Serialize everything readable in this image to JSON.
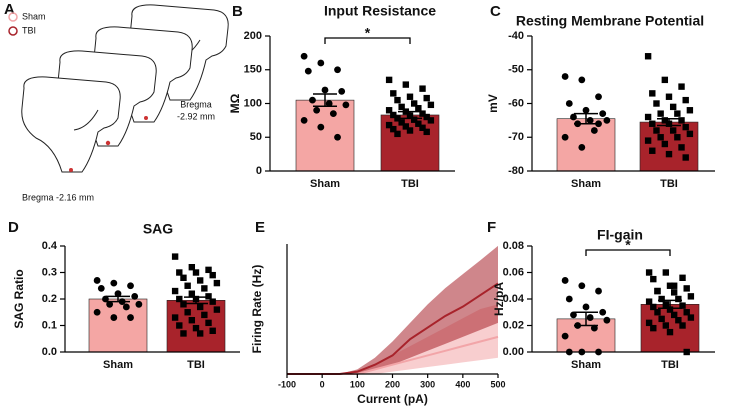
{
  "schematic": {
    "label": "A",
    "legend": [
      "Sham",
      "TBI"
    ],
    "annotations": [
      [
        "Bregma",
        "-2.92 mm"
      ],
      [
        "Bregma -2.16 mm"
      ]
    ]
  },
  "chart_data": [
    {
      "type": "bar",
      "panel": "B",
      "title": "Input Resistance",
      "ylabel": "MΩ",
      "categories": [
        "Sham",
        "TBI"
      ],
      "values": [
        105,
        83
      ],
      "errors": [
        9,
        5
      ],
      "colors": [
        "#f4a6a4",
        "#a8232b"
      ],
      "markers": [
        "circle",
        "square"
      ],
      "points": [
        [
          170,
          160,
          150,
          148,
          120,
          118,
          105,
          100,
          98,
          90,
          85,
          75,
          65,
          50
        ],
        [
          135,
          128,
          122,
          115,
          110,
          108,
          105,
          100,
          98,
          95,
          93,
          90,
          88,
          85,
          83,
          82,
          80,
          78,
          76,
          75,
          72,
          70,
          68,
          66,
          64,
          62,
          60,
          58,
          55
        ]
      ],
      "ylim": [
        0,
        200
      ],
      "yticks": [
        0,
        50,
        100,
        150,
        200
      ],
      "significance": "*"
    },
    {
      "type": "bar",
      "panel": "C",
      "title": "Resting Membrane Potential",
      "ylabel": "mV",
      "categories": [
        "Sham",
        "TBI"
      ],
      "values": [
        -64.5,
        -65.5
      ],
      "errors": [
        1.5,
        1
      ],
      "colors": [
        "#f4a6a4",
        "#a8232b"
      ],
      "markers": [
        "circle",
        "square"
      ],
      "points": [
        [
          -52,
          -53,
          -58,
          -60,
          -62,
          -63,
          -64,
          -65,
          -65,
          -66,
          -68,
          -70,
          -73,
          -66
        ],
        [
          -46,
          -53,
          -55,
          -57,
          -58,
          -59,
          -60,
          -61,
          -62,
          -63,
          -63,
          -64,
          -65,
          -65,
          -66,
          -66,
          -67,
          -68,
          -68,
          -69,
          -70,
          -70,
          -71,
          -72,
          -73,
          -74,
          -75,
          -76
        ]
      ],
      "ylim": [
        -80,
        -40
      ],
      "yticks": [
        -80,
        -70,
        -60,
        -50,
        -40
      ]
    },
    {
      "type": "bar",
      "panel": "D",
      "title": "SAG",
      "ylabel": "SAG Ratio",
      "categories": [
        "Sham",
        "TBI"
      ],
      "values": [
        0.2,
        0.195
      ],
      "errors": [
        0.01,
        0.012
      ],
      "colors": [
        "#f4a6a4",
        "#a8232b"
      ],
      "markers": [
        "circle",
        "square"
      ],
      "points": [
        [
          0.27,
          0.26,
          0.25,
          0.24,
          0.22,
          0.21,
          0.2,
          0.19,
          0.18,
          0.18,
          0.17,
          0.15,
          0.13,
          0.13
        ],
        [
          0.36,
          0.32,
          0.31,
          0.3,
          0.3,
          0.29,
          0.28,
          0.27,
          0.26,
          0.25,
          0.24,
          0.23,
          0.22,
          0.21,
          0.2,
          0.2,
          0.19,
          0.18,
          0.17,
          0.16,
          0.15,
          0.14,
          0.13,
          0.12,
          0.11,
          0.1,
          0.09,
          0.08,
          0.07,
          0.07
        ]
      ],
      "ylim": [
        0,
        0.4
      ],
      "yticks": [
        {
          "value": 0,
          "label": "0.0"
        },
        0.1,
        0.2,
        0.3,
        0.4
      ]
    },
    {
      "type": "line",
      "panel": "E",
      "xlabel": "Current (pA)",
      "ylabel": "Firing Rate (Hz)",
      "x": [
        -100,
        -50,
        0,
        50,
        100,
        150,
        200,
        250,
        300,
        350,
        400,
        450,
        500
      ],
      "series": [
        {
          "color": "#f2a5a8",
          "values": [
            0,
            0,
            0,
            0,
            0,
            1,
            2,
            3,
            4,
            5,
            6,
            7,
            8
          ],
          "lower": [
            0,
            0,
            0,
            0,
            0,
            0,
            0.5,
            1,
            1.5,
            2,
            2.5,
            3,
            3.5
          ],
          "upper": [
            0,
            0,
            0,
            0,
            0.5,
            2,
            4,
            6,
            8,
            10,
            12,
            14,
            15
          ]
        },
        {
          "color": "#a8232b",
          "values": [
            0,
            0,
            0,
            0,
            0.5,
            2,
            4,
            7.5,
            10,
            12.5,
            14.5,
            17,
            19.5
          ],
          "lower": [
            0,
            0,
            0,
            0,
            0,
            1,
            2,
            3.5,
            5,
            6.5,
            8,
            9.5,
            11
          ],
          "upper": [
            0,
            0,
            0,
            0,
            1,
            3.5,
            7,
            11,
            15,
            18.5,
            21.5,
            24.5,
            27.6
          ]
        }
      ],
      "xlim": [
        -100,
        500
      ],
      "xticks": [
        -100,
        0,
        100,
        200,
        300,
        400,
        500
      ],
      "ylim": [
        0,
        28
      ]
    },
    {
      "type": "bar",
      "panel": "F",
      "title": "FI-gain",
      "ylabel": "Hz/pA",
      "categories": [
        "Sham",
        "TBI"
      ],
      "values": [
        0.025,
        0.036
      ],
      "errors": [
        0.005,
        0.003
      ],
      "colors": [
        "#f4a6a4",
        "#a8232b"
      ],
      "markers": [
        "circle",
        "square"
      ],
      "points": [
        [
          0.054,
          0.05,
          0.046,
          0.04,
          0.034,
          0.03,
          0.028,
          0.026,
          0.024,
          0.02,
          0.018,
          0.012,
          0,
          0,
          0
        ],
        [
          0.06,
          0.06,
          0.056,
          0.055,
          0.05,
          0.048,
          0.046,
          0.045,
          0.042,
          0.04,
          0.04,
          0.038,
          0.036,
          0.035,
          0.034,
          0.032,
          0.03,
          0.03,
          0.028,
          0.026,
          0.025,
          0.024,
          0.022,
          0.02,
          0.02,
          0.018,
          0.015,
          0,
          0.046,
          0.05
        ]
      ],
      "ylim": [
        0,
        0.08
      ],
      "yticks": [
        {
          "value": 0,
          "label": "0.00"
        },
        {
          "value": 0.02,
          "label": "0.02"
        },
        {
          "value": 0.04,
          "label": "0.04"
        },
        {
          "value": 0.06,
          "label": "0.06"
        },
        {
          "value": 0.08,
          "label": "0.08"
        }
      ],
      "significance": "*"
    }
  ]
}
